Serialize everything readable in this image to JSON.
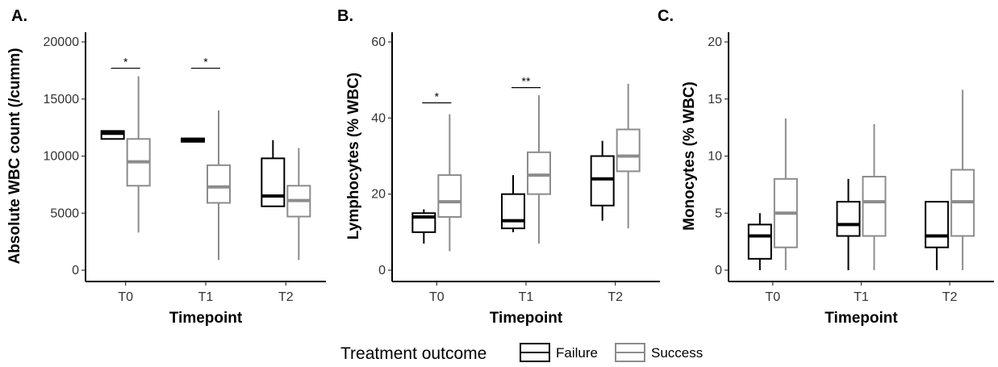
{
  "legend": {
    "title": "Treatment outcome",
    "placement": "bottom",
    "entries": [
      {
        "name": "Failure",
        "color": "#000000"
      },
      {
        "name": "Success",
        "color": "#8c8c8c"
      }
    ]
  },
  "chart_data": [
    {
      "type": "box",
      "panel_label": "A.",
      "xlabel": "Timepoint",
      "ylabel": "Absolute WBC count (/cumm)",
      "categories": [
        "T0",
        "T1",
        "T2"
      ],
      "ylim": [
        0,
        20000
      ],
      "yticks": [
        0,
        5000,
        10000,
        15000,
        20000
      ],
      "grid": false,
      "series": [
        {
          "name": "Failure",
          "color": "#000000",
          "boxes": [
            {
              "min": 11500,
              "q1": 11500,
              "median": 12000,
              "q3": 12200,
              "max": 12200
            },
            {
              "min": 11250,
              "q1": 11250,
              "median": 11400,
              "q3": 11550,
              "max": 11550
            },
            {
              "min": 5600,
              "q1": 5600,
              "median": 6500,
              "q3": 9800,
              "max": 11400
            }
          ]
        },
        {
          "name": "Success",
          "color": "#8c8c8c",
          "boxes": [
            {
              "min": 3300,
              "q1": 7400,
              "median": 9500,
              "q3": 11500,
              "max": 17000
            },
            {
              "min": 900,
              "q1": 5900,
              "median": 7300,
              "q3": 9200,
              "max": 14000
            },
            {
              "min": 900,
              "q1": 4700,
              "median": 6100,
              "q3": 7400,
              "max": 10700
            }
          ]
        }
      ],
      "significance": [
        {
          "category": "T0",
          "label": "*",
          "y": 17700
        },
        {
          "category": "T1",
          "label": "*",
          "y": 17700
        }
      ]
    },
    {
      "type": "box",
      "panel_label": "B.",
      "xlabel": "Timepoint",
      "ylabel": "Lymphocytes (% WBC)",
      "categories": [
        "T0",
        "T1",
        "T2"
      ],
      "ylim": [
        0,
        60
      ],
      "yticks": [
        0,
        20,
        40,
        60
      ],
      "grid": false,
      "series": [
        {
          "name": "Failure",
          "color": "#000000",
          "boxes": [
            {
              "min": 7,
              "q1": 10,
              "median": 14,
              "q3": 15,
              "max": 16
            },
            {
              "min": 10,
              "q1": 11,
              "median": 13,
              "q3": 20,
              "max": 25
            },
            {
              "min": 13,
              "q1": 17,
              "median": 24,
              "q3": 30,
              "max": 34
            }
          ]
        },
        {
          "name": "Success",
          "color": "#8c8c8c",
          "boxes": [
            {
              "min": 5,
              "q1": 14,
              "median": 18,
              "q3": 25,
              "max": 41
            },
            {
              "min": 7,
              "q1": 20,
              "median": 25,
              "q3": 31,
              "max": 46
            },
            {
              "min": 11,
              "q1": 26,
              "median": 30,
              "q3": 37,
              "max": 49
            }
          ]
        }
      ],
      "significance": [
        {
          "category": "T0",
          "label": "*",
          "y": 44
        },
        {
          "category": "T1",
          "label": "**",
          "y": 48
        }
      ]
    },
    {
      "type": "box",
      "panel_label": "C.",
      "xlabel": "Timepoint",
      "ylabel": "Monocytes (% WBC)",
      "categories": [
        "T0",
        "T1",
        "T2"
      ],
      "ylim": [
        0,
        20
      ],
      "yticks": [
        0,
        5,
        10,
        15,
        20
      ],
      "grid": false,
      "series": [
        {
          "name": "Failure",
          "color": "#000000",
          "boxes": [
            {
              "min": 0,
              "q1": 1,
              "median": 3,
              "q3": 4,
              "max": 5
            },
            {
              "min": 0,
              "q1": 3,
              "median": 4,
              "q3": 6,
              "max": 8
            },
            {
              "min": 0,
              "q1": 2,
              "median": 3,
              "q3": 6,
              "max": 6
            }
          ]
        },
        {
          "name": "Success",
          "color": "#8c8c8c",
          "boxes": [
            {
              "min": 0,
              "q1": 2,
              "median": 5,
              "q3": 8,
              "max": 13.3
            },
            {
              "min": 0,
              "q1": 3,
              "median": 6,
              "q3": 8.2,
              "max": 12.8
            },
            {
              "min": 0,
              "q1": 3,
              "median": 6,
              "q3": 8.8,
              "max": 15.8
            }
          ]
        }
      ],
      "significance": []
    }
  ]
}
